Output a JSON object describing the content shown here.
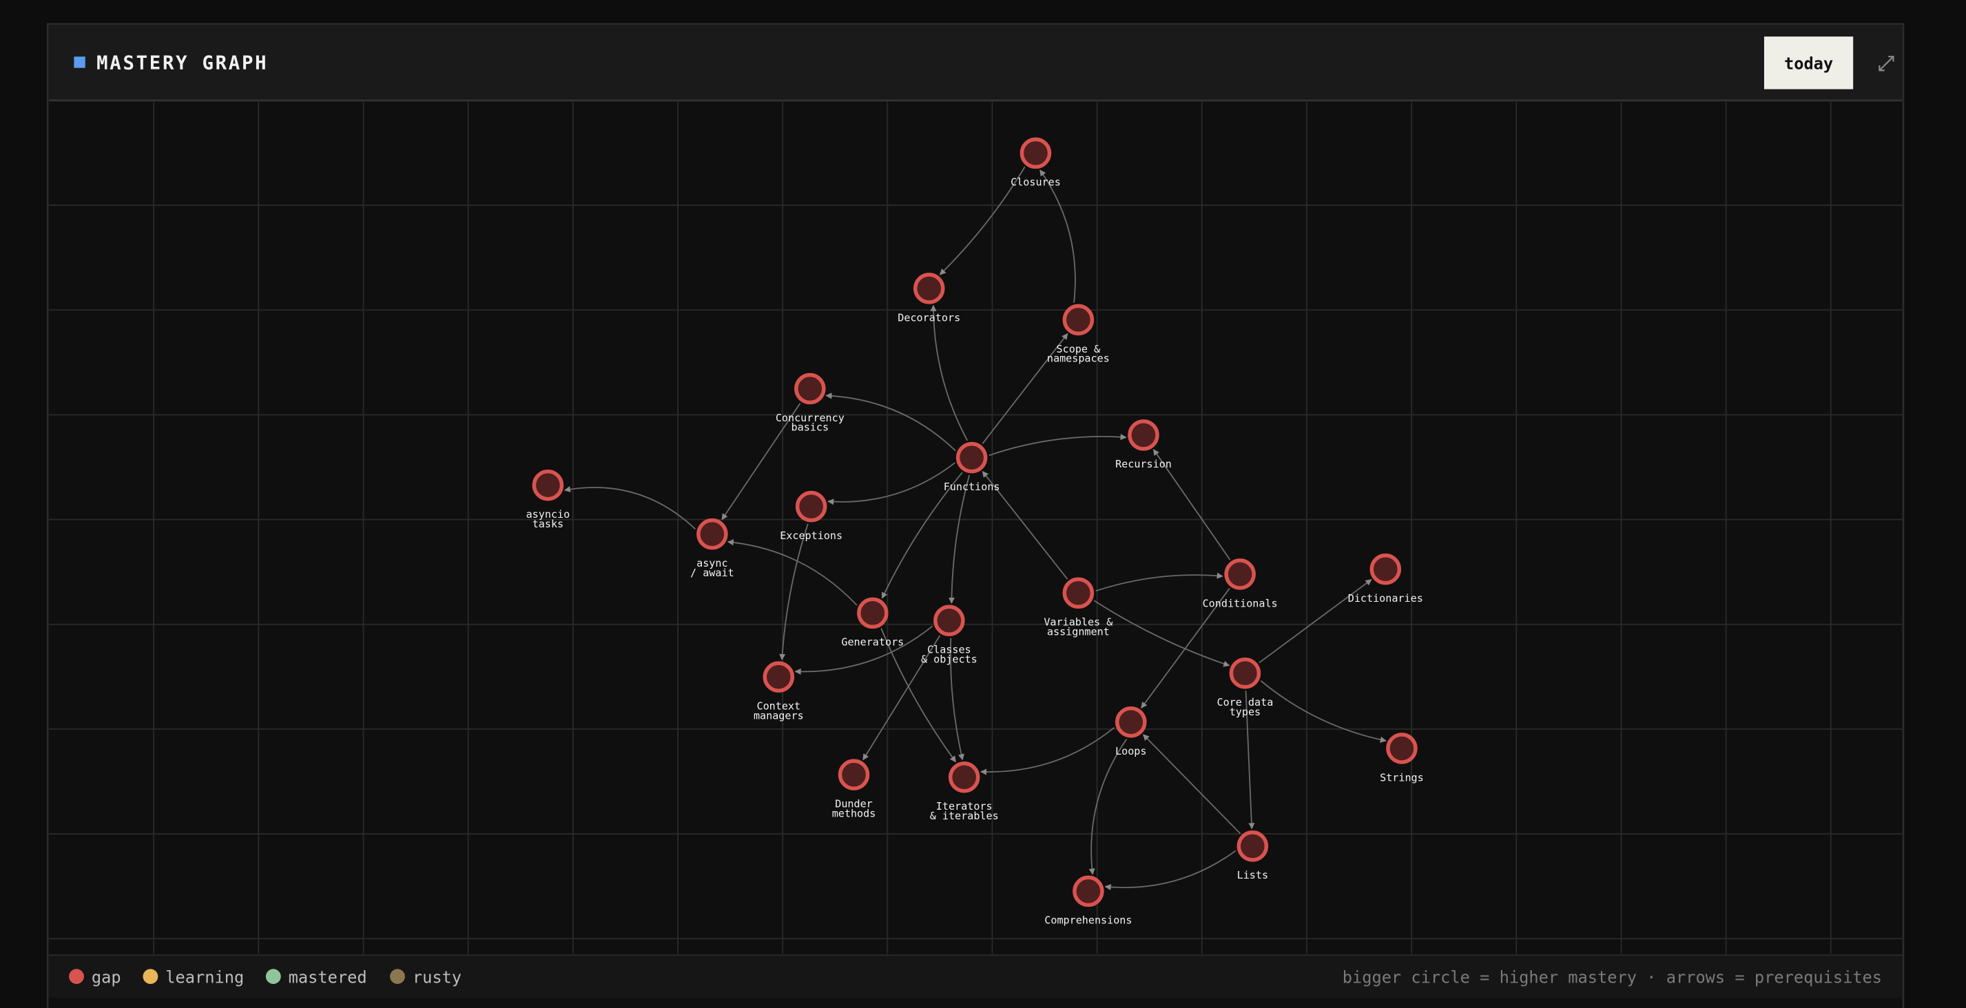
{
  "header": {
    "title": "MASTERY GRAPH",
    "button": "today"
  },
  "nodes": [
    {
      "label": [
        "Closures"
      ]
    },
    {
      "label": [
        "Decorators"
      ]
    },
    {
      "label": [
        "Scope &",
        "namespaces"
      ]
    },
    {
      "label": [
        "Concurrency",
        "basics"
      ]
    },
    {
      "label": [
        "Recursion"
      ]
    },
    {
      "label": [
        "Functions"
      ]
    },
    {
      "label": [
        "asyncio",
        "tasks"
      ]
    },
    {
      "label": [
        "Exceptions"
      ]
    },
    {
      "label": [
        "async",
        "/ await"
      ]
    },
    {
      "label": [
        "Conditionals"
      ]
    },
    {
      "label": [
        "Dictionaries"
      ]
    },
    {
      "label": [
        "Variables &",
        "assignment"
      ]
    },
    {
      "label": [
        "Generators"
      ]
    },
    {
      "label": [
        "Classes",
        "& objects"
      ]
    },
    {
      "label": [
        "Core data",
        "types"
      ]
    },
    {
      "label": [
        "Context",
        "managers"
      ]
    },
    {
      "label": [
        "Loops"
      ]
    },
    {
      "label": [
        "Strings"
      ]
    },
    {
      "label": [
        "Dunder",
        "methods"
      ]
    },
    {
      "label": [
        "Iterators",
        "& iterables"
      ]
    },
    {
      "label": [
        "Lists"
      ]
    },
    {
      "label": [
        "Comprehensions"
      ]
    }
  ],
  "legend": {
    "items": [
      "gap",
      "learning",
      "mastered",
      "rusty"
    ],
    "note": "bigger circle = higher mastery · arrows = prerequisites"
  }
}
